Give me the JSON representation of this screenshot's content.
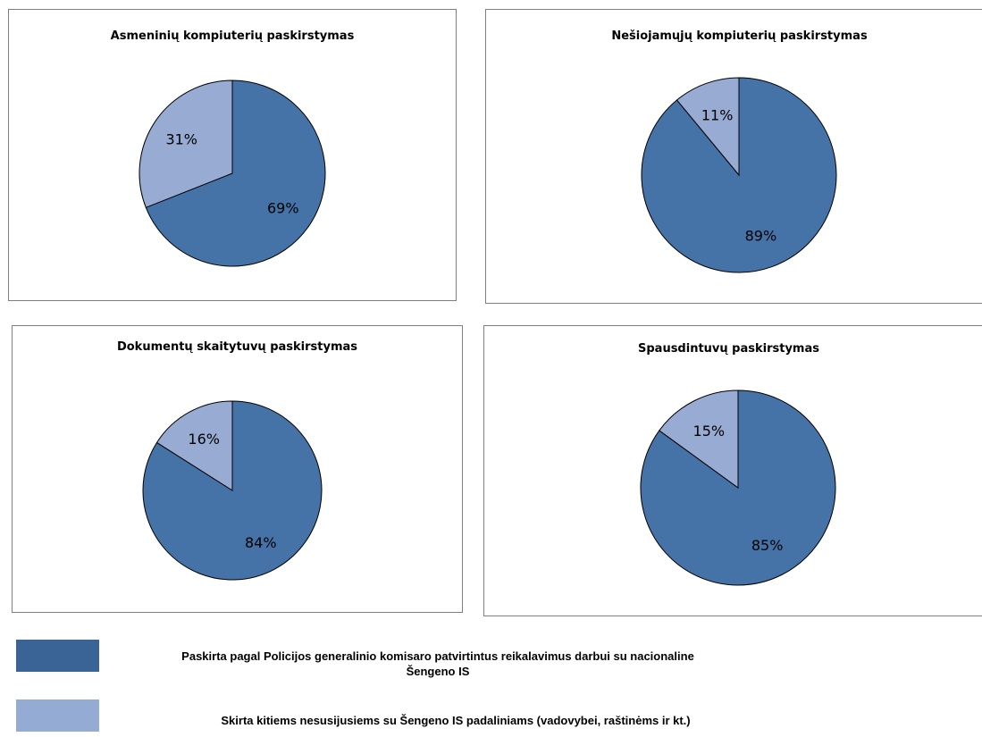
{
  "chart_data": [
    {
      "type": "pie",
      "title": "Asmeninių kompiuterių paskirstymas",
      "slices": [
        {
          "series": 0,
          "value": 69,
          "label": "69%"
        },
        {
          "series": 1,
          "value": 31,
          "label": "31%"
        }
      ]
    },
    {
      "type": "pie",
      "title": "Nešiojamųjų kompiuterių paskirstymas",
      "slices": [
        {
          "series": 0,
          "value": 89,
          "label": "89%"
        },
        {
          "series": 1,
          "value": 11,
          "label": "11%"
        }
      ]
    },
    {
      "type": "pie",
      "title": "Dokumentų skaitytuvų paskirstymas",
      "slices": [
        {
          "series": 0,
          "value": 84,
          "label": "84%"
        },
        {
          "series": 1,
          "value": 16,
          "label": "16%"
        }
      ]
    },
    {
      "type": "pie",
      "title": "Spausdintuvų paskirstymas",
      "slices": [
        {
          "series": 0,
          "value": 85,
          "label": "85%"
        },
        {
          "series": 1,
          "value": 15,
          "label": "15%"
        }
      ]
    }
  ],
  "legend": [
    {
      "label": "Paskirta pagal Policijos generalinio komisaro patvirtintus reikalavimus darbui su nacionaline Šengeno IS",
      "color": "#3a6496"
    },
    {
      "label": "Skirta kitiems nesusijusiems su Šengeno IS padaliniams (vadovybei, raštinėms ir kt.)",
      "color": "#94acd4"
    }
  ],
  "colors": {
    "series": [
      "#4573a7",
      "#97abd3"
    ],
    "outline": "#000000"
  }
}
